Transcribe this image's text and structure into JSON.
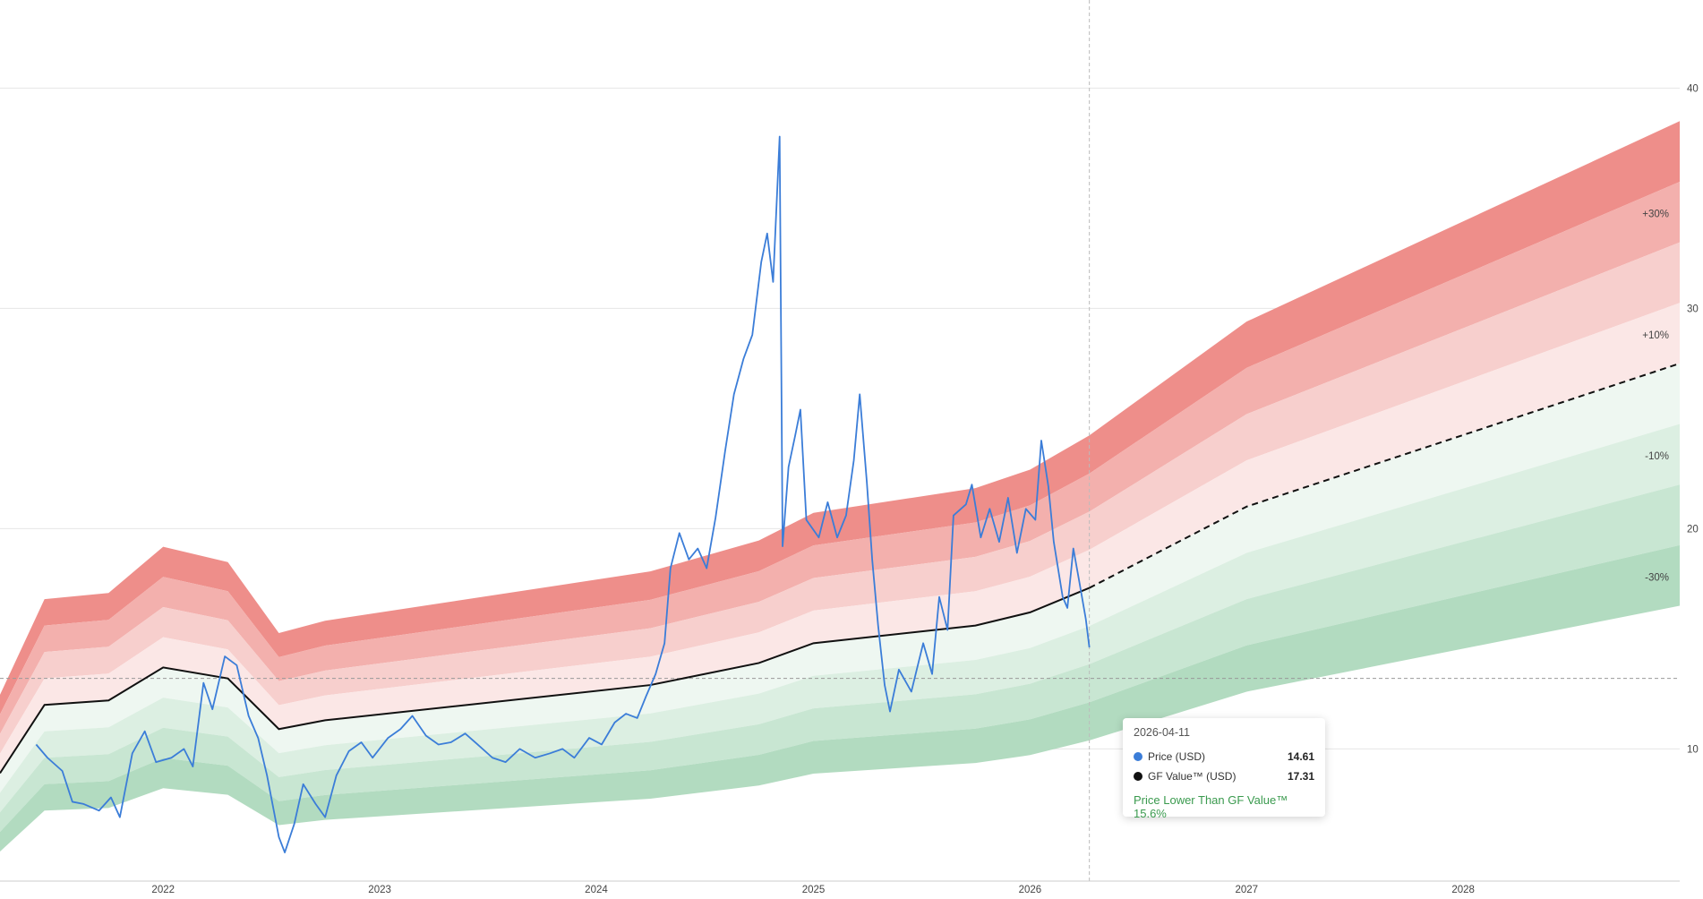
{
  "chart_data": {
    "type": "area",
    "title": "",
    "xlabel": "",
    "ylabel": "",
    "ylim": [
      4,
      44
    ],
    "xlim": [
      "2021-04-01",
      "2028-12-31"
    ],
    "grid": true,
    "y_ticks": [
      10,
      20,
      30,
      40
    ],
    "x_ticks": [
      "2022",
      "2023",
      "2024",
      "2025",
      "2026",
      "2027",
      "2028"
    ],
    "band_labels": [
      "+30%",
      "+10%",
      "-10%",
      "-30%"
    ],
    "series": [
      {
        "name": "Price (USD)",
        "color": "#3b7dd8",
        "points": [
          [
            "2021-06-01",
            10.2
          ],
          [
            "2021-06-20",
            9.6
          ],
          [
            "2021-07-15",
            9.0
          ],
          [
            "2021-08-01",
            7.6
          ],
          [
            "2021-08-20",
            7.5
          ],
          [
            "2021-09-15",
            7.2
          ],
          [
            "2021-10-05",
            7.8
          ],
          [
            "2021-10-20",
            6.9
          ],
          [
            "2021-11-10",
            9.8
          ],
          [
            "2021-12-01",
            10.8
          ],
          [
            "2021-12-20",
            9.4
          ],
          [
            "2022-01-15",
            9.6
          ],
          [
            "2022-02-05",
            10.0
          ],
          [
            "2022-02-20",
            9.2
          ],
          [
            "2022-03-10",
            13.0
          ],
          [
            "2022-03-25",
            11.8
          ],
          [
            "2022-04-15",
            14.2
          ],
          [
            "2022-05-05",
            13.8
          ],
          [
            "2022-05-25",
            11.5
          ],
          [
            "2022-06-10",
            10.5
          ],
          [
            "2022-06-25",
            8.8
          ],
          [
            "2022-07-15",
            6.0
          ],
          [
            "2022-07-25",
            5.3
          ],
          [
            "2022-08-10",
            6.6
          ],
          [
            "2022-08-25",
            8.4
          ],
          [
            "2022-09-15",
            7.5
          ],
          [
            "2022-10-01",
            6.9
          ],
          [
            "2022-10-20",
            8.8
          ],
          [
            "2022-11-10",
            9.9
          ],
          [
            "2022-12-01",
            10.3
          ],
          [
            "2022-12-20",
            9.6
          ],
          [
            "2023-01-15",
            10.5
          ],
          [
            "2023-02-05",
            10.9
          ],
          [
            "2023-02-25",
            11.5
          ],
          [
            "2023-03-20",
            10.6
          ],
          [
            "2023-04-10",
            10.2
          ],
          [
            "2023-05-01",
            10.3
          ],
          [
            "2023-05-25",
            10.7
          ],
          [
            "2023-06-15",
            10.2
          ],
          [
            "2023-07-10",
            9.6
          ],
          [
            "2023-08-01",
            9.4
          ],
          [
            "2023-08-25",
            10.0
          ],
          [
            "2023-09-20",
            9.6
          ],
          [
            "2023-10-15",
            9.8
          ],
          [
            "2023-11-05",
            10.0
          ],
          [
            "2023-11-25",
            9.6
          ],
          [
            "2023-12-20",
            10.5
          ],
          [
            "2024-01-10",
            10.2
          ],
          [
            "2024-02-01",
            11.2
          ],
          [
            "2024-02-20",
            11.6
          ],
          [
            "2024-03-10",
            11.4
          ],
          [
            "2024-03-25",
            12.4
          ],
          [
            "2024-04-10",
            13.4
          ],
          [
            "2024-04-25",
            14.8
          ],
          [
            "2024-05-05",
            18.2
          ],
          [
            "2024-05-20",
            19.8
          ],
          [
            "2024-06-05",
            18.6
          ],
          [
            "2024-06-20",
            19.1
          ],
          [
            "2024-07-05",
            18.2
          ],
          [
            "2024-07-20",
            20.5
          ],
          [
            "2024-08-05",
            23.5
          ],
          [
            "2024-08-20",
            26.1
          ],
          [
            "2024-09-05",
            27.7
          ],
          [
            "2024-09-20",
            28.8
          ],
          [
            "2024-10-05",
            32.1
          ],
          [
            "2024-10-15",
            33.4
          ],
          [
            "2024-10-25",
            31.2
          ],
          [
            "2024-11-05",
            37.8
          ],
          [
            "2024-11-10",
            19.2
          ],
          [
            "2024-11-20",
            22.8
          ],
          [
            "2024-12-01",
            24.2
          ],
          [
            "2024-12-10",
            25.4
          ],
          [
            "2024-12-20",
            20.4
          ],
          [
            "2025-01-10",
            19.6
          ],
          [
            "2025-01-25",
            21.2
          ],
          [
            "2025-02-10",
            19.6
          ],
          [
            "2025-02-25",
            20.6
          ],
          [
            "2025-03-10",
            23.1
          ],
          [
            "2025-03-20",
            26.1
          ],
          [
            "2025-04-01",
            22.1
          ],
          [
            "2025-04-10",
            18.6
          ],
          [
            "2025-04-20",
            15.6
          ],
          [
            "2025-05-01",
            12.9
          ],
          [
            "2025-05-10",
            11.7
          ],
          [
            "2025-05-25",
            13.6
          ],
          [
            "2025-06-15",
            12.6
          ],
          [
            "2025-07-05",
            14.8
          ],
          [
            "2025-07-20",
            13.4
          ],
          [
            "2025-08-01",
            16.9
          ],
          [
            "2025-08-15",
            15.4
          ],
          [
            "2025-08-25",
            20.6
          ],
          [
            "2025-09-15",
            21.1
          ],
          [
            "2025-09-25",
            22.0
          ],
          [
            "2025-10-10",
            19.6
          ],
          [
            "2025-10-25",
            20.9
          ],
          [
            "2025-11-10",
            19.4
          ],
          [
            "2025-11-25",
            21.4
          ],
          [
            "2025-12-10",
            18.9
          ],
          [
            "2025-12-25",
            20.9
          ],
          [
            "2026-01-10",
            20.4
          ],
          [
            "2026-01-20",
            24.0
          ],
          [
            "2026-02-01",
            21.9
          ],
          [
            "2026-02-10",
            19.4
          ],
          [
            "2026-02-25",
            16.9
          ],
          [
            "2026-03-05",
            16.4
          ],
          [
            "2026-03-15",
            19.1
          ],
          [
            "2026-03-25",
            17.6
          ],
          [
            "2026-04-05",
            15.9
          ],
          [
            "2026-04-11",
            14.61
          ]
        ]
      },
      {
        "name": "GF Value™ (USD)",
        "color": "#111111",
        "points": [
          [
            "2021-04-01",
            8.9
          ],
          [
            "2021-06-15",
            12.0
          ],
          [
            "2021-10-01",
            12.2
          ],
          [
            "2022-01-01",
            13.7
          ],
          [
            "2022-04-20",
            13.2
          ],
          [
            "2022-07-15",
            10.9
          ],
          [
            "2022-10-01",
            11.3
          ],
          [
            "2024-04-01",
            12.9
          ],
          [
            "2024-10-01",
            13.9
          ],
          [
            "2025-01-01",
            14.8
          ],
          [
            "2025-10-01",
            15.6
          ],
          [
            "2026-01-01",
            16.2
          ],
          [
            "2026-04-11",
            17.31
          ]
        ]
      },
      {
        "name": "GF Value™ projection",
        "color": "#111111",
        "dashed": true,
        "points": [
          [
            "2026-04-11",
            17.31
          ],
          [
            "2027-01-01",
            21.0
          ],
          [
            "2028-12-31",
            27.5
          ]
        ]
      }
    ],
    "tooltip": {
      "date": "2026-04-11",
      "rows": [
        {
          "label": "Price (USD)",
          "value": "14.61",
          "color": "#3b7dd8"
        },
        {
          "label": "GF Value™ (USD)",
          "value": "17.31",
          "color": "#111111"
        }
      ],
      "note": "Price Lower Than GF Value™ 15.6%",
      "note_color": "#3a9a4e"
    },
    "crosshair": {
      "x": "2026-04-11",
      "y": 13.2
    }
  }
}
